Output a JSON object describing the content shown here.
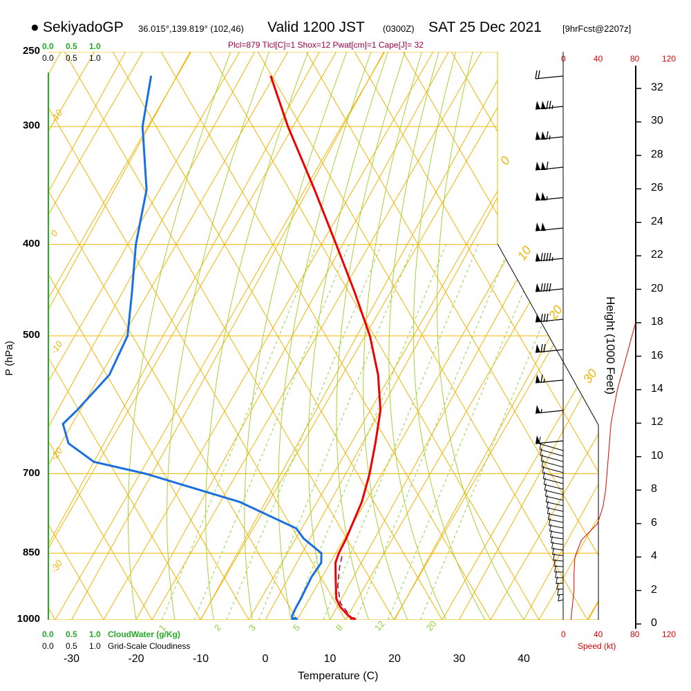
{
  "header": {
    "station": "SekiyadoGP",
    "coords": "36.015°,139.819° (102,46)",
    "valid": "Valid 1200 JST",
    "utc": "(0300Z)",
    "date": "SAT 25 Dec 2021",
    "forecast": "[9hrFcst@2207z]",
    "indices": "Plcl=879 Tlcl[C]=1 Shox=12 Pwat[cm]=1 Cape[J]= 32"
  },
  "axes": {
    "y_label": "P (hPa)",
    "x_label": "Temperature (C)",
    "height_label": "Height (1000 Feet)",
    "speed_label": "Speed (kt)",
    "cloudwater_label": "CloudWater (g/Kg)",
    "cloudiness_label": "Grid-Scale Cloudiness",
    "cloud_ticks": [
      "0.0",
      "0.5",
      "1.0"
    ],
    "speed_ticks": [
      "0",
      "40",
      "80",
      "120"
    ]
  },
  "colors": {
    "temperature": "#ee0000",
    "dewpoint": "#1a6fe0",
    "parcel": "#880044",
    "isotherm": "#f0b400",
    "dry_adiabat": "#f0b400",
    "moist_adiabat": "#a8d030",
    "mixing_ratio": "#90d040",
    "cloudwater": "#22aa22",
    "indices": "#990044",
    "speed": "#e00000"
  },
  "chart_data": {
    "type": "line",
    "title": "SekiyadoGP Valid 1200 JST (0300Z) SAT 25 Dec 2021",
    "xlabel": "Temperature (C)",
    "ylabel": "P (hPa)",
    "x_ticks": [
      -30,
      -20,
      -10,
      0,
      10,
      20,
      30,
      40
    ],
    "y_ticks": [
      250,
      300,
      400,
      500,
      700,
      850,
      1000
    ],
    "height_ticks": [
      0,
      2,
      4,
      6,
      8,
      10,
      12,
      14,
      16,
      18,
      20,
      22,
      24,
      26,
      28,
      30,
      32
    ],
    "xlim": [
      -34,
      36
    ],
    "ylim": [
      1000,
      250
    ],
    "skew": "skew-T log-p",
    "dry_adiabat_labels": [
      "-10",
      "0",
      "-10",
      "-20",
      "-30",
      "0",
      "10",
      "20",
      "30"
    ],
    "mixing_ratio_labels": [
      "1",
      "2",
      "3",
      "5",
      "8",
      "12",
      "20"
    ],
    "series": [
      {
        "name": "Temperature",
        "points": [
          [
            1000,
            13.6
          ],
          [
            990,
            12.5
          ],
          [
            970,
            10.6
          ],
          [
            950,
            9.2
          ],
          [
            900,
            7.2
          ],
          [
            870,
            6.0
          ],
          [
            850,
            5.7
          ],
          [
            820,
            5.6
          ],
          [
            800,
            5.4
          ],
          [
            750,
            4.9
          ],
          [
            700,
            3.7
          ],
          [
            650,
            2.0
          ],
          [
            600,
            0.0
          ],
          [
            550,
            -3.4
          ],
          [
            500,
            -8.0
          ],
          [
            450,
            -14.0
          ],
          [
            400,
            -21.0
          ],
          [
            350,
            -29.0
          ],
          [
            300,
            -38.5
          ],
          [
            265,
            -45.5
          ]
        ]
      },
      {
        "name": "Dewpoint",
        "points": [
          [
            1000,
            4.2
          ],
          [
            990,
            3.8
          ],
          [
            970,
            3.7
          ],
          [
            950,
            3.7
          ],
          [
            900,
            3.5
          ],
          [
            870,
            3.8
          ],
          [
            850,
            3.0
          ],
          [
            820,
            -1.0
          ],
          [
            800,
            -3.0
          ],
          [
            750,
            -14.0
          ],
          [
            700,
            -31.0
          ],
          [
            680,
            -40.0
          ],
          [
            650,
            -45.5
          ],
          [
            620,
            -48.0
          ],
          [
            600,
            -47.0
          ],
          [
            550,
            -45.0
          ],
          [
            500,
            -45.5
          ],
          [
            450,
            -48.5
          ],
          [
            400,
            -52.0
          ],
          [
            350,
            -55.0
          ],
          [
            300,
            -61.0
          ],
          [
            265,
            -64.0
          ]
        ]
      },
      {
        "name": "Parcel",
        "points": [
          [
            1000,
            13.6
          ],
          [
            970,
            11.0
          ],
          [
            930,
            8.5
          ],
          [
            900,
            7.5
          ],
          [
            879,
            1.0
          ],
          [
            860,
            6.4
          ],
          [
            850,
            6.3
          ]
        ]
      }
    ],
    "wind_speed_profile": {
      "height_kft": [
        0,
        1,
        2,
        3,
        4,
        5,
        6,
        7,
        8,
        10,
        12,
        14,
        16,
        18,
        20,
        22,
        24,
        26,
        28,
        30,
        32
      ],
      "speed_kt": [
        8,
        10,
        12,
        12,
        13,
        20,
        38,
        44,
        47,
        50,
        53,
        60,
        70,
        80,
        88,
        95,
        100,
        105,
        112,
        120,
        128
      ]
    }
  }
}
